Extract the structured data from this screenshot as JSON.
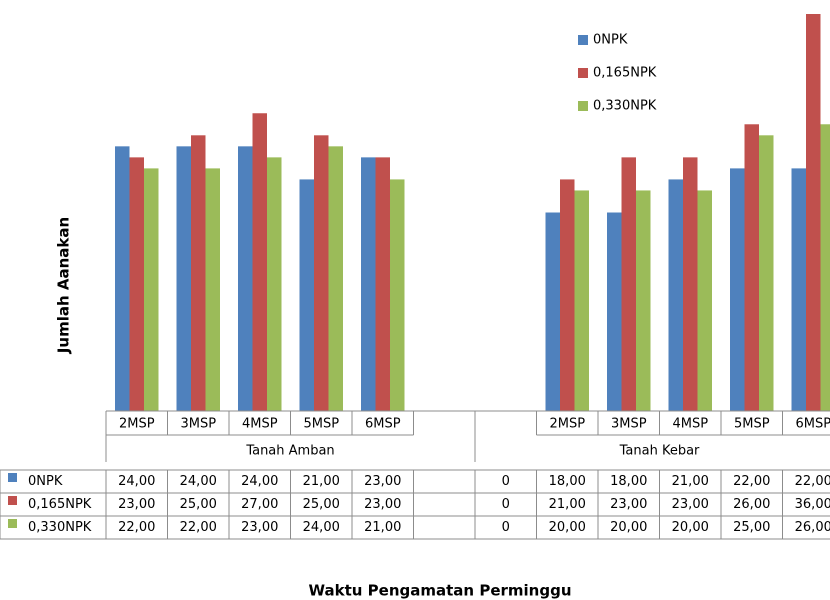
{
  "chart_data": {
    "type": "bar",
    "y_label": "Jumlah Aanakan",
    "x_label": "Waktu Pengamatan Perminggu",
    "groups": [
      "Tanah Amban",
      "Tanah Kebar"
    ],
    "categories": [
      "2MSP",
      "3MSP",
      "4MSP",
      "5MSP",
      "6MSP",
      null,
      null,
      "2MSP",
      "3MSP",
      "4MSP",
      "5MSP",
      "6MSP"
    ],
    "series": [
      {
        "name": "0NPK",
        "color": "#4f81bd",
        "values": [
          24,
          24,
          24,
          21,
          23,
          null,
          0,
          18,
          18,
          21,
          22,
          22
        ],
        "value_labels": [
          "24,00",
          "24,00",
          "24,00",
          "21,00",
          "23,00",
          null,
          "0",
          "18,00",
          "18,00",
          "21,00",
          "22,00",
          "22,00"
        ]
      },
      {
        "name": "0,165NPK",
        "color": "#c0504d",
        "values": [
          23,
          25,
          27,
          25,
          23,
          null,
          0,
          21,
          23,
          23,
          26,
          36
        ],
        "value_labels": [
          "23,00",
          "25,00",
          "27,00",
          "25,00",
          "23,00",
          null,
          "0",
          "21,00",
          "23,00",
          "23,00",
          "26,00",
          "36,00"
        ]
      },
      {
        "name": "0,330NPK",
        "color": "#9bbb59",
        "values": [
          22,
          22,
          23,
          24,
          21,
          null,
          0,
          20,
          20,
          20,
          25,
          26
        ],
        "value_labels": [
          "22,00",
          "22,00",
          "23,00",
          "24,00",
          "21,00",
          null,
          "0",
          "20,00",
          "20,00",
          "20,00",
          "25,00",
          "26,00"
        ]
      }
    ],
    "ylim": [
      0,
      36
    ],
    "legend": "top-right"
  }
}
